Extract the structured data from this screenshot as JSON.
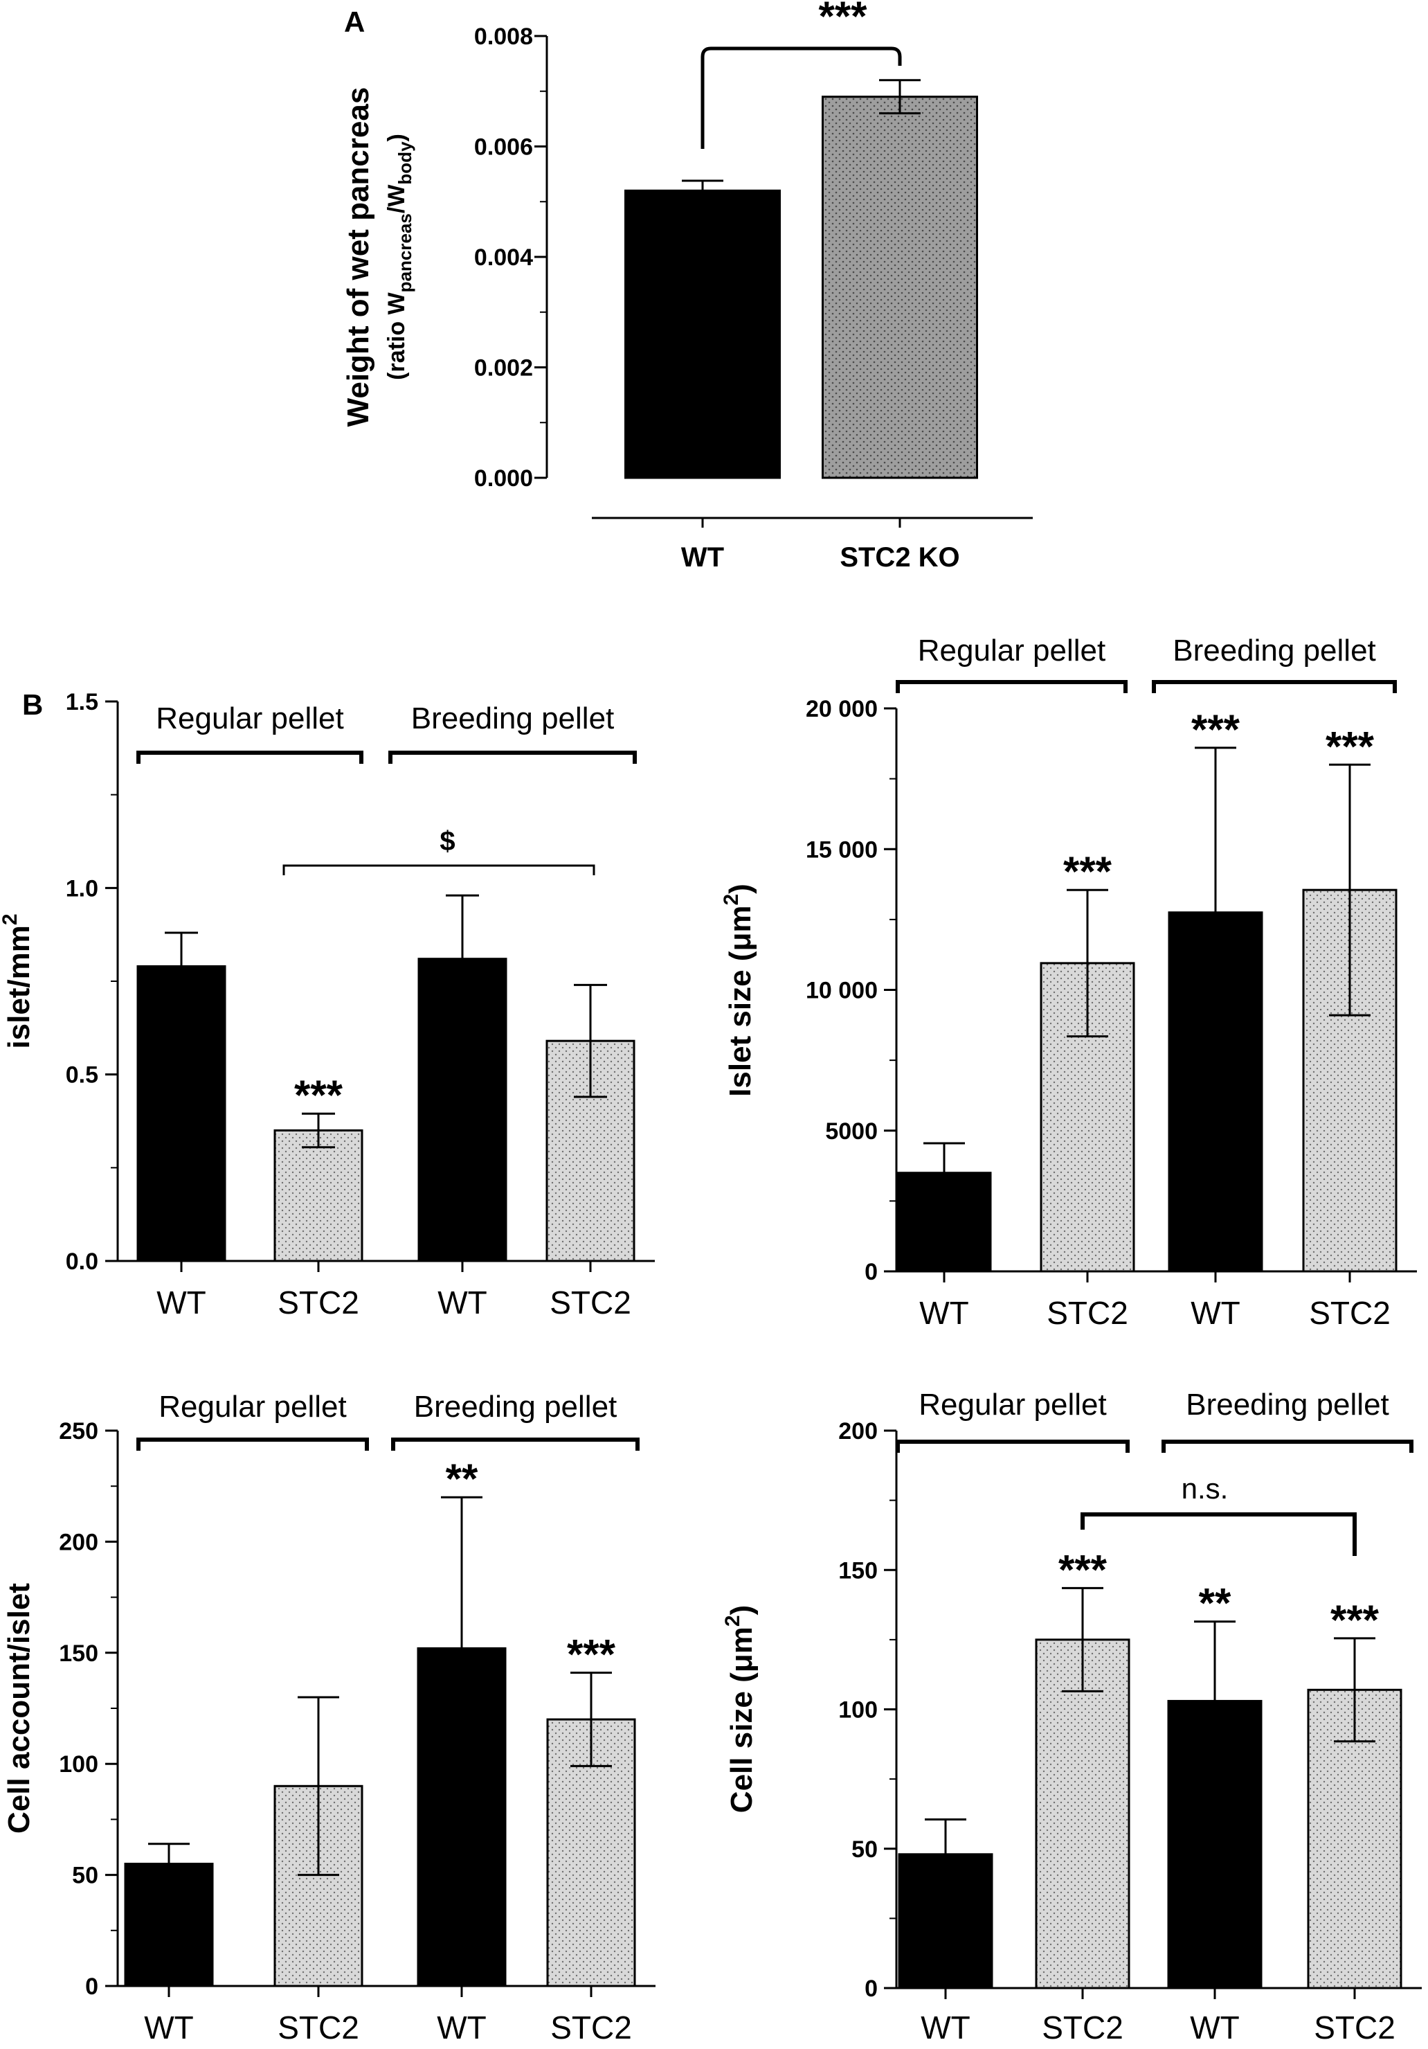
{
  "panel_labels": {
    "a": "A",
    "b": "B"
  },
  "chart_data": [
    {
      "id": "A",
      "type": "bar",
      "categories": [
        "WT",
        "STC2 KO"
      ],
      "values": [
        0.0052,
        0.0069
      ],
      "errors": [
        0.00018,
        0.0003
      ],
      "ylabel": "Weight of wet pancreas",
      "ylabel_sub": "(ratio Wpancreas/Wbody)",
      "ylim": [
        0,
        0.008
      ],
      "yticks": [
        "0.000",
        "0.002",
        "0.004",
        "0.006",
        "0.008"
      ],
      "significance": "***",
      "fills": [
        "#000000",
        "#9e9e9e"
      ]
    },
    {
      "id": "B1",
      "type": "bar",
      "categories": [
        "WT",
        "STC2",
        "WT",
        "STC2"
      ],
      "values": [
        0.79,
        0.35,
        0.81,
        0.59
      ],
      "errors": [
        0.09,
        0.045,
        0.17,
        0.15
      ],
      "ylabel": "islet/mm2",
      "ylim": [
        0,
        1.5
      ],
      "yticks": [
        "0.0",
        "0.5",
        "1.0",
        "1.5"
      ],
      "groups": [
        "Regular pellet",
        "Breeding pellet"
      ],
      "bar_marks": [
        "",
        "***",
        "",
        ""
      ],
      "comparison": {
        "from": 1,
        "to": 3,
        "label": "$"
      },
      "fills": [
        "#000000",
        "#d6d6d6",
        "#000000",
        "#d6d6d6"
      ]
    },
    {
      "id": "B2",
      "type": "bar",
      "categories": [
        "WT",
        "STC2",
        "WT",
        "STC2"
      ],
      "values": [
        3500,
        10950,
        12750,
        13550
      ],
      "errors": [
        1050,
        2600,
        5850,
        4450
      ],
      "ylabel": "Islet size (μm2)",
      "ylim": [
        0,
        20000
      ],
      "yticks": [
        "0",
        "5000",
        "10 000",
        "15 000",
        "20 000"
      ],
      "groups": [
        "Regular pellet",
        "Breeding pellet"
      ],
      "bar_marks": [
        "",
        "***",
        "***",
        "***"
      ],
      "fills": [
        "#000000",
        "#d6d6d6",
        "#000000",
        "#d6d6d6"
      ]
    },
    {
      "id": "B3",
      "type": "bar",
      "categories": [
        "WT",
        "STC2",
        "WT",
        "STC2"
      ],
      "values": [
        55,
        90,
        152,
        120
      ],
      "errors": [
        9,
        40,
        68,
        21
      ],
      "ylabel": "Cell account/islet",
      "ylim": [
        0,
        250
      ],
      "yticks": [
        "0",
        "50",
        "100",
        "150",
        "200",
        "250"
      ],
      "groups": [
        "Regular pellet",
        "Breeding pellet"
      ],
      "bar_marks": [
        "",
        "",
        "**",
        "***"
      ],
      "fills": [
        "#000000",
        "#d6d6d6",
        "#000000",
        "#d6d6d6"
      ]
    },
    {
      "id": "B4",
      "type": "bar",
      "categories": [
        "WT",
        "STC2",
        "WT",
        "STC2"
      ],
      "values": [
        48,
        125,
        103,
        107
      ],
      "errors": [
        12.5,
        18.5,
        28.5,
        18.5
      ],
      "ylabel": "Cell size (μm2)",
      "ylim": [
        0,
        200
      ],
      "yticks": [
        "0",
        "50",
        "100",
        "150",
        "200"
      ],
      "groups": [
        "Regular pellet",
        "Breeding pellet"
      ],
      "bar_marks": [
        "",
        "***",
        "**",
        "***"
      ],
      "comparison": {
        "from": 1,
        "to": 3,
        "label": "n.s."
      },
      "fills": [
        "#000000",
        "#d6d6d6",
        "#000000",
        "#d6d6d6"
      ]
    }
  ]
}
